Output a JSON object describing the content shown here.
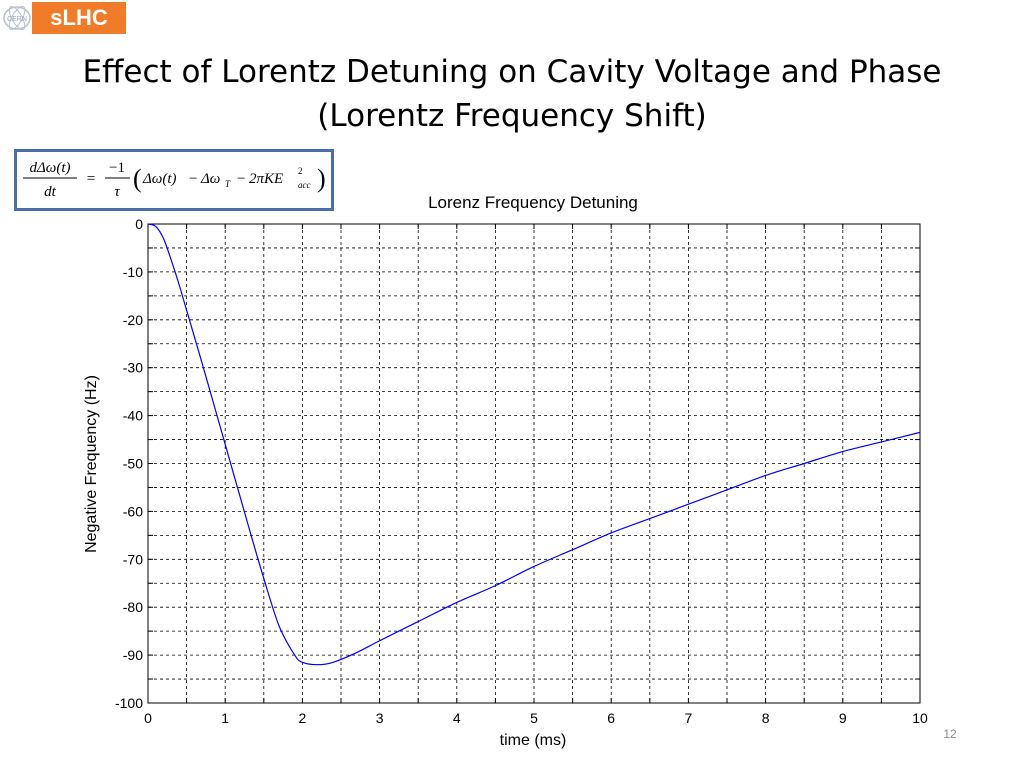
{
  "branding": {
    "logo_text": "sLHC",
    "logo_color": "#f07c2a",
    "cern_seal_text": "CERN"
  },
  "slide": {
    "title_line1": "Effect of Lorentz Detuning on Cavity Voltage and Phase",
    "title_line2": "(Lorentz Frequency Shift)",
    "page_number": "12"
  },
  "equation": {
    "lhs_numerator": "dΔω(t)",
    "lhs_denominator": "dt",
    "equals": "=",
    "coef_numerator": "−1",
    "coef_denominator": "τ",
    "open_paren": "(",
    "term1": "Δω(t)",
    "minus1": "−",
    "term2": "Δω",
    "term2_sub": "T",
    "minus2": "−",
    "term3": "2πKE",
    "term3_sup": "2",
    "term3_sub": "acc",
    "close_paren": ")",
    "border_color": "#4a6ea9"
  },
  "chart_data": {
    "type": "line",
    "title": "Lorenz Frequency Detuning",
    "xlabel": "time (ms)",
    "ylabel": "Negative Frequency (Hz)",
    "xlim": [
      0,
      10
    ],
    "ylim": [
      -100,
      0
    ],
    "xticks": [
      "0",
      "1",
      "2",
      "3",
      "4",
      "5",
      "6",
      "7",
      "8",
      "9",
      "10"
    ],
    "yticks": [
      "0",
      "-10",
      "-20",
      "-30",
      "-40",
      "-50",
      "-60",
      "-70",
      "-80",
      "-90",
      "-100"
    ],
    "grid": true,
    "line_color": "#0000ff",
    "series": [
      {
        "x": [
          0,
          0.1,
          0.2,
          0.3,
          0.4,
          0.5,
          0.7,
          1.0,
          1.3,
          1.5,
          1.7,
          1.9,
          2.0,
          2.2,
          2.4,
          2.7,
          3.0,
          3.5,
          4.0,
          4.5,
          5.0,
          5.5,
          6.0,
          6.5,
          7.0,
          7.5,
          8.0,
          8.5,
          9.0,
          9.5,
          10.0
        ],
        "y": [
          0,
          -0.5,
          -3,
          -7.5,
          -12.5,
          -18,
          -29,
          -46,
          -63,
          -74,
          -84,
          -90,
          -91.5,
          -92,
          -91.5,
          -89.5,
          -87,
          -83,
          -79,
          -75.5,
          -71.5,
          -68,
          -64.5,
          -61.5,
          -58.5,
          -55.5,
          -52.5,
          -50,
          -47.5,
          -45.5,
          -43.5
        ]
      }
    ]
  }
}
